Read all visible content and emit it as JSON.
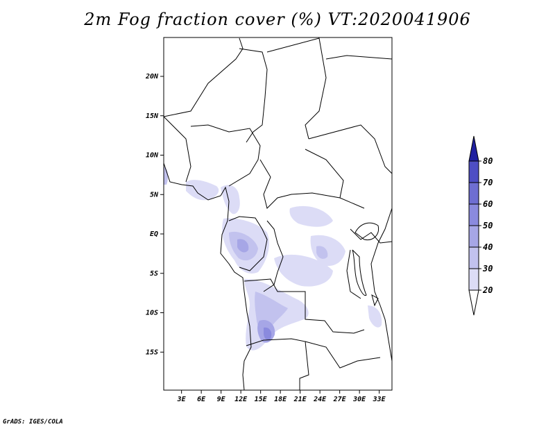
{
  "title": "2m Fog fraction cover (%) VT:2020041906",
  "footer": "GrADS: IGES/COLA",
  "map": {
    "lat_ticks": [
      {
        "lat": 20,
        "label": "20N"
      },
      {
        "lat": 15,
        "label": "15N"
      },
      {
        "lat": 10,
        "label": "10N"
      },
      {
        "lat": 5,
        "label": "5N"
      },
      {
        "lat": 0,
        "label": "EQ"
      },
      {
        "lat": -5,
        "label": "5S"
      },
      {
        "lat": -10,
        "label": "10S"
      },
      {
        "lat": -15,
        "label": "15S"
      }
    ],
    "lon_ticks": [
      {
        "lon": 3,
        "label": "3E"
      },
      {
        "lon": 6,
        "label": "6E"
      },
      {
        "lon": 9,
        "label": "9E"
      },
      {
        "lon": 12,
        "label": "12E"
      },
      {
        "lon": 15,
        "label": "15E"
      },
      {
        "lon": 18,
        "label": "18E"
      },
      {
        "lon": 21,
        "label": "21E"
      },
      {
        "lon": 24,
        "label": "24E"
      },
      {
        "lon": 27,
        "label": "27E"
      },
      {
        "lon": 30,
        "label": "30E"
      },
      {
        "lon": 33,
        "label": "33E"
      }
    ]
  },
  "legend": {
    "bins": [
      {
        "label": "20",
        "color": "#dcdcf6"
      },
      {
        "label": "30",
        "color": "#c2c2ee"
      },
      {
        "label": "40",
        "color": "#a6a6e6"
      },
      {
        "label": "50",
        "color": "#8a8ade"
      },
      {
        "label": "60",
        "color": "#6e6ed2"
      },
      {
        "label": "70",
        "color": "#4e4ec4"
      },
      {
        "label": "80",
        "color": "#3232ae"
      }
    ],
    "top_color": "#2020a0"
  }
}
